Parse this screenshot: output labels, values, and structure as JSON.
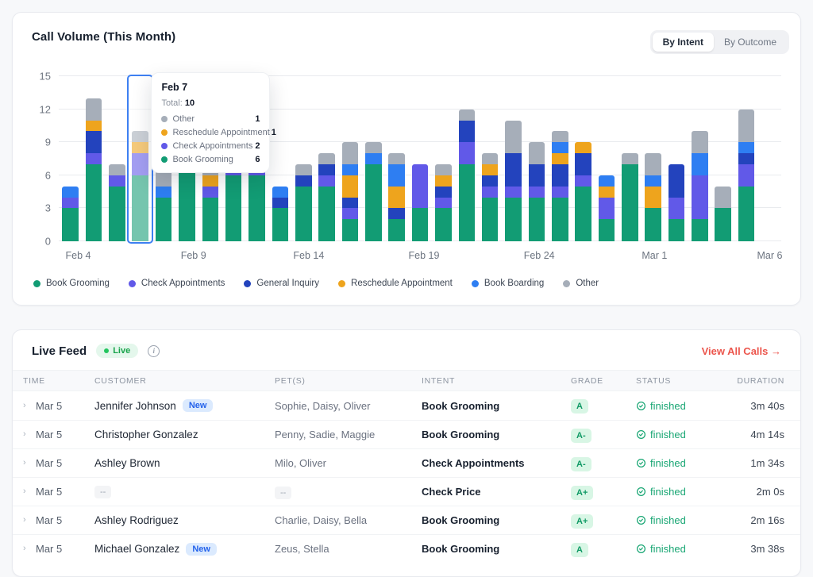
{
  "chart_card": {
    "title": "Call Volume (This Month)",
    "toggle": [
      {
        "label": "By Intent",
        "active": true
      },
      {
        "label": "By Outcome",
        "active": false
      }
    ],
    "tooltip": {
      "title": "Feb 7",
      "total_label": "Total:",
      "total_value": "10",
      "rows": [
        {
          "label": "Other",
          "value": "1",
          "color": "#a6aeb9"
        },
        {
          "label": "Reschedule Appointment",
          "value": "1",
          "color": "#eea41d"
        },
        {
          "label": "Check Appointments",
          "value": "2",
          "color": "#6159e8"
        },
        {
          "label": "Book Grooming",
          "value": "6",
          "color": "#129c74"
        }
      ]
    }
  },
  "chart_data": {
    "type": "bar",
    "stacked": true,
    "title": "Call Volume (This Month)",
    "ylim": [
      0,
      15
    ],
    "yticks": [
      0,
      3,
      6,
      9,
      12,
      15
    ],
    "grid": true,
    "highlighted_index": 3,
    "x": [
      "Feb 4",
      "Feb 5",
      "Feb 6",
      "Feb 7",
      "Feb 8",
      "Feb 9",
      "Feb 10",
      "Feb 11",
      "Feb 12",
      "Feb 13",
      "Feb 14",
      "Feb 15",
      "Feb 16",
      "Feb 17",
      "Feb 18",
      "Feb 19",
      "Feb 20",
      "Feb 21",
      "Feb 22",
      "Feb 23",
      "Feb 24",
      "Feb 25",
      "Feb 26",
      "Feb 27",
      "Feb 28",
      "Mar 1",
      "Mar 2",
      "Mar 3",
      "Mar 4",
      "Mar 5",
      "Mar 6"
    ],
    "ticks": [
      {
        "i": 0,
        "label": "Feb 4"
      },
      {
        "i": 5,
        "label": "Feb 9"
      },
      {
        "i": 10,
        "label": "Feb 14"
      },
      {
        "i": 15,
        "label": "Feb 19"
      },
      {
        "i": 20,
        "label": "Feb 24"
      },
      {
        "i": 25,
        "label": "Mar 1"
      },
      {
        "i": 30,
        "label": "Mar 6"
      }
    ],
    "series": [
      {
        "name": "Book Grooming",
        "color": "#129c74",
        "values": [
          3,
          7,
          5,
          6,
          4,
          7,
          4,
          6,
          6,
          3,
          5,
          5,
          2,
          7,
          2,
          3,
          3,
          7,
          4,
          4,
          4,
          4,
          5,
          2,
          7,
          3,
          2,
          2,
          3,
          5,
          0
        ]
      },
      {
        "name": "Check Appointments",
        "color": "#6159e8",
        "values": [
          1,
          1,
          1,
          2,
          0,
          0,
          1,
          2,
          2,
          0,
          0,
          1,
          1,
          0,
          0,
          4,
          1,
          2,
          1,
          1,
          1,
          1,
          1,
          2,
          0,
          0,
          2,
          4,
          0,
          2,
          0
        ]
      },
      {
        "name": "General Inquiry",
        "color": "#2343bd",
        "values": [
          0,
          2,
          0,
          0,
          0,
          0,
          0,
          0,
          0,
          1,
          1,
          1,
          1,
          0,
          1,
          0,
          1,
          2,
          1,
          3,
          2,
          2,
          2,
          0,
          0,
          0,
          3,
          0,
          0,
          1,
          0
        ]
      },
      {
        "name": "Reschedule Appointment",
        "color": "#eea41d",
        "values": [
          0,
          1,
          0,
          1,
          0,
          0,
          1,
          0,
          0,
          0,
          0,
          0,
          2,
          0,
          2,
          0,
          1,
          0,
          1,
          0,
          0,
          1,
          1,
          1,
          0,
          2,
          0,
          0,
          0,
          0,
          0
        ]
      },
      {
        "name": "Book Boarding",
        "color": "#2e7ef2",
        "values": [
          1,
          0,
          0,
          0,
          1,
          0,
          0,
          0,
          0,
          1,
          0,
          0,
          1,
          1,
          2,
          0,
          0,
          0,
          0,
          0,
          0,
          1,
          0,
          1,
          0,
          1,
          0,
          2,
          0,
          1,
          0
        ]
      },
      {
        "name": "Other",
        "color": "#a6aeb9",
        "values": [
          0,
          2,
          1,
          1,
          2,
          1,
          3,
          0,
          0,
          0,
          1,
          1,
          2,
          1,
          1,
          0,
          1,
          1,
          1,
          3,
          2,
          1,
          0,
          0,
          1,
          2,
          0,
          2,
          2,
          3,
          0
        ]
      }
    ]
  },
  "live_feed": {
    "title": "Live Feed",
    "live_badge": "Live",
    "info_tooltip": "i",
    "view_all": "View All Calls →",
    "new_badge_label": "New",
    "empty_placeholder": "--",
    "columns": [
      "TIME",
      "CUSTOMER",
      "PET(S)",
      "INTENT",
      "GRADE",
      "STATUS",
      "DURATION"
    ],
    "rows": [
      {
        "time": "Mar 5",
        "customer": "Jennifer Johnson",
        "is_new": true,
        "pets": "Sophie, Daisy, Oliver",
        "intent": "Book Grooming",
        "grade": "A",
        "status": "finished",
        "duration": "3m 40s"
      },
      {
        "time": "Mar 5",
        "customer": "Christopher Gonzalez",
        "is_new": false,
        "pets": "Penny, Sadie, Maggie",
        "intent": "Book Grooming",
        "grade": "A-",
        "status": "finished",
        "duration": "4m 14s"
      },
      {
        "time": "Mar 5",
        "customer": "Ashley Brown",
        "is_new": false,
        "pets": "Milo, Oliver",
        "intent": "Check Appointments",
        "grade": "A-",
        "status": "finished",
        "duration": "1m 34s"
      },
      {
        "time": "Mar 5",
        "customer": "--",
        "is_new": false,
        "pets": "--",
        "intent": "Check Price",
        "grade": "A+",
        "status": "finished",
        "duration": "2m 0s"
      },
      {
        "time": "Mar 5",
        "customer": "Ashley Rodriguez",
        "is_new": false,
        "pets": "Charlie, Daisy, Bella",
        "intent": "Book Grooming",
        "grade": "A+",
        "status": "finished",
        "duration": "2m 16s"
      },
      {
        "time": "Mar 5",
        "customer": "Michael Gonzalez",
        "is_new": true,
        "pets": "Zeus, Stella",
        "intent": "Book Grooming",
        "grade": "A",
        "status": "finished",
        "duration": "3m 38s"
      }
    ]
  },
  "icons": {
    "row_expand": "chevron-right",
    "info": "info-circle",
    "status_finished": "check-circle",
    "live_indicator": "dot"
  },
  "colors": {
    "selection_border": "#3e80f2",
    "grade_badge_bg": "#d8f6e5",
    "grade_badge_text": "#119a66",
    "status_green": "#18a673",
    "view_all_red": "#ec564d",
    "new_badge_blue": "#2563eb"
  }
}
